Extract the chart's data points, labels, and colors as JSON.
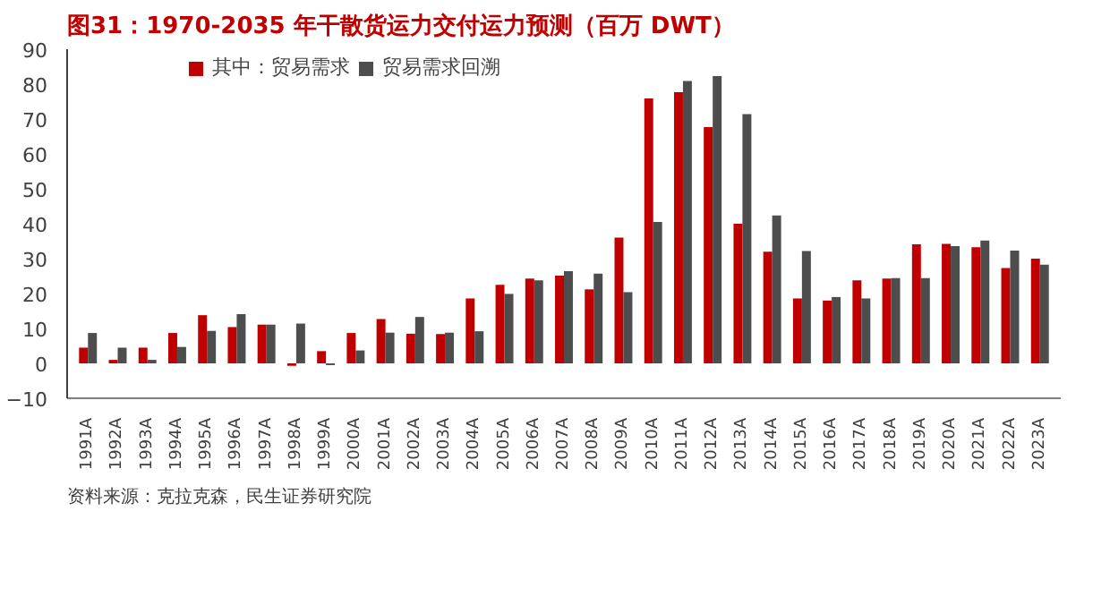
{
  "chart_data": {
    "type": "bar",
    "title": "图31：1970-2035 年干散货运力交付运力预测（百万 DWT）",
    "categories": [
      "1991A",
      "1992A",
      "1993A",
      "1994A",
      "1995A",
      "1996A",
      "1997A",
      "1998A",
      "1999A",
      "2000A",
      "2001A",
      "2002A",
      "2003A",
      "2004A",
      "2005A",
      "2006A",
      "2007A",
      "2008A",
      "2009A",
      "2010A",
      "2011A",
      "2012A",
      "2013A",
      "2014A",
      "2015A",
      "2016A",
      "2017A",
      "2018A",
      "2019A",
      "2020A",
      "2021A",
      "2022A",
      "2023A"
    ],
    "series": [
      {
        "name": "其中：贸易需求",
        "color": "#c00000",
        "values": [
          4.5,
          1,
          4.5,
          8.7,
          13.8,
          10.4,
          11.1,
          -0.7,
          3.5,
          8.7,
          12.7,
          8.5,
          8.4,
          18.6,
          22.5,
          24.3,
          25.1,
          21.2,
          36,
          75.9,
          77.7,
          67.7,
          40,
          32,
          18.6,
          18,
          23.8,
          24.3,
          34.1,
          34.2,
          33.3,
          27.3,
          30
        ]
      },
      {
        "name": "贸易需求回溯",
        "color": "#4d4d4d",
        "values": [
          8.7,
          4.5,
          1,
          4.7,
          9.3,
          14.1,
          11.1,
          11.4,
          -0.5,
          3.7,
          8.8,
          13.3,
          8.8,
          9.2,
          19.9,
          23.8,
          26.4,
          25.7,
          20.4,
          40.5,
          80.9,
          82.3,
          71.4,
          42.4,
          32.2,
          19,
          18.6,
          24.4,
          24.4,
          33.6,
          35.2,
          32.3,
          28.3
        ]
      }
    ],
    "ylim": [
      -10,
      90
    ],
    "yticks": [
      -10,
      0,
      10,
      20,
      30,
      40,
      50,
      60,
      70,
      80,
      90
    ],
    "grid": false,
    "legend": "top",
    "annotations": [
      "资料来源：克拉克森，民生证券研究院"
    ]
  }
}
